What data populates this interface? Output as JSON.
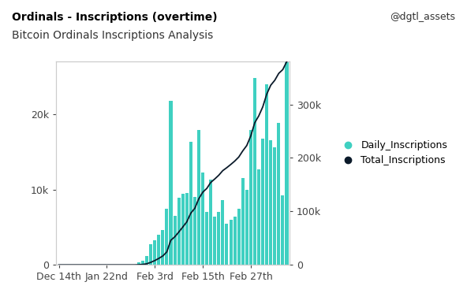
{
  "chart_data": {
    "type": "bar",
    "title": "Ordinals - Inscriptions (overtime)",
    "subtitle": "Bitcoin Ordinals Inscriptions Analysis",
    "author": "@dgtl_assets",
    "categories": [
      "Dec 14th",
      null,
      null,
      null,
      null,
      null,
      null,
      null,
      null,
      null,
      null,
      null,
      "Jan 22nd",
      null,
      null,
      null,
      null,
      null,
      null,
      null,
      null,
      null,
      null,
      null,
      "Feb 3rd",
      null,
      null,
      null,
      null,
      null,
      null,
      null,
      null,
      null,
      null,
      null,
      "Feb 15th",
      null,
      null,
      null,
      null,
      null,
      null,
      null,
      null,
      null,
      null,
      null,
      "Feb 27th",
      null,
      null,
      null,
      null,
      null,
      null,
      null,
      null,
      null
    ],
    "series": [
      {
        "name": "Daily_Inscriptions",
        "type": "bar",
        "color": "#3fd0c1",
        "values": [
          0,
          0,
          0,
          0,
          0,
          0,
          0,
          0,
          0,
          0,
          0,
          0,
          0,
          0,
          0,
          0,
          0,
          0,
          0,
          0,
          300,
          600,
          1200,
          2700,
          3300,
          4000,
          4600,
          7500,
          21800,
          6500,
          8900,
          9400,
          9600,
          16300,
          9000,
          17900,
          12300,
          7000,
          11300,
          6400,
          7000,
          8600,
          5500,
          6000,
          6400,
          7500,
          11500,
          10000,
          17900,
          24800,
          12700,
          16800,
          24000,
          16600,
          15600,
          18900,
          9200,
          27000
        ]
      },
      {
        "name": "Total_Inscriptions",
        "type": "line",
        "axis": "y2",
        "color": "#0b1a2a",
        "values": [
          0,
          0,
          0,
          0,
          0,
          0,
          0,
          0,
          0,
          0,
          0,
          0,
          0,
          0,
          0,
          0,
          0,
          0,
          0,
          0,
          300,
          900,
          2100,
          4800,
          8100,
          12100,
          16700,
          24200,
          46000,
          52500,
          61400,
          70800,
          80400,
          96700,
          105700,
          123600,
          135900,
          142900,
          154200,
          160600,
          167600,
          176200,
          181700,
          187700,
          194100,
          201600,
          213100,
          223100,
          241000,
          265800,
          278500,
          295300,
          319300,
          335900,
          345000,
          358000,
          365000,
          380000
        ]
      }
    ],
    "ylim": [
      0,
      27000
    ],
    "yticks": [
      0,
      {
        "value": 10000,
        "label": "10k"
      },
      {
        "value": 20000,
        "label": "20k"
      }
    ],
    "y2lim": [
      0,
      380000
    ],
    "y2ticks": [
      0,
      {
        "value": 100000,
        "label": "100k"
      },
      {
        "value": 200000,
        "label": "200k"
      },
      {
        "value": 300000,
        "label": "300k"
      }
    ],
    "grid": false,
    "legend": "right"
  }
}
